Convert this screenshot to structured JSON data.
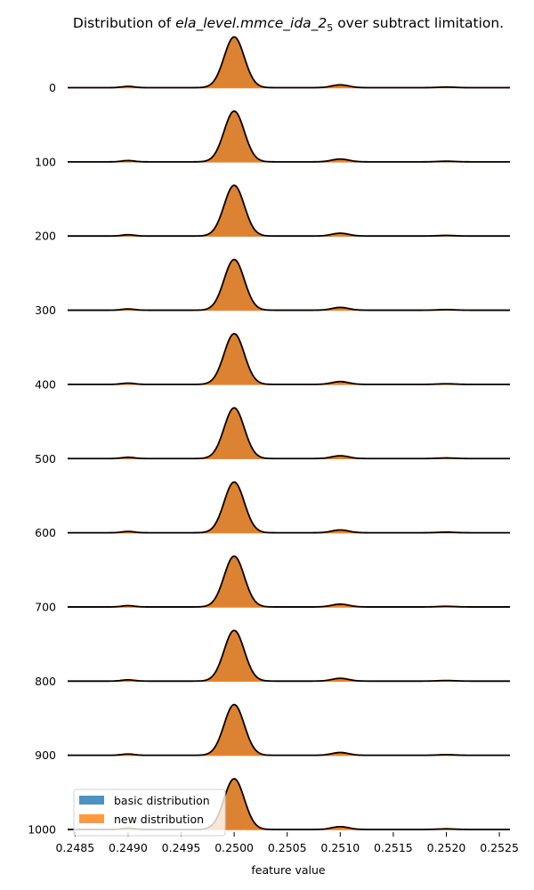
{
  "chart_data": {
    "type": "area",
    "chart_style": "ridgeline",
    "title_parts": [
      "Distribution of ",
      "ela_level.mmce_ida_2",
      "5",
      " over subtract limitation."
    ],
    "xlabel": "feature value",
    "ylabel": "",
    "x_ticks": [
      "0.2485",
      "0.2490",
      "0.2495",
      "0.2500",
      "0.2505",
      "0.2510",
      "0.2515",
      "0.2520",
      "0.2525"
    ],
    "xlim": [
      0.24843,
      0.2526
    ],
    "row_labels": [
      "0",
      "100",
      "200",
      "300",
      "400",
      "500",
      "600",
      "700",
      "800",
      "900",
      "1000"
    ],
    "kde_components": [
      {
        "center": 0.249,
        "sd": 6e-05,
        "height": 0.025
      },
      {
        "center": 0.25,
        "sd": 9.5e-05,
        "height": 1.0
      },
      {
        "center": 0.251,
        "sd": 8e-05,
        "height": 0.055
      },
      {
        "center": 0.252,
        "sd": 8e-05,
        "height": 0.012
      }
    ],
    "series": [
      {
        "name": "basic distribution",
        "color": "#1f77b4",
        "fill_opacity": 0.8
      },
      {
        "name": "new distribution",
        "color": "#ff7f0e",
        "fill_opacity": 0.8
      }
    ],
    "legend_position": "bottom-left",
    "grid": false
  },
  "colors": {
    "curve_line": "#000000",
    "overlap_fill": "#c88a56"
  }
}
